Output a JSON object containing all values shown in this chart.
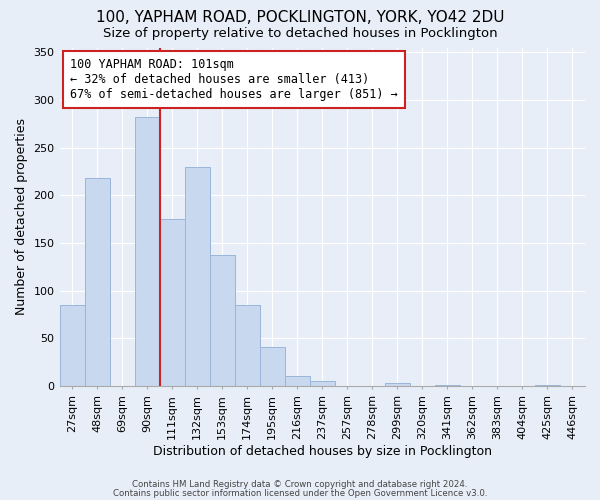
{
  "title": "100, YAPHAM ROAD, POCKLINGTON, YORK, YO42 2DU",
  "subtitle": "Size of property relative to detached houses in Pocklington",
  "xlabel": "Distribution of detached houses by size in Pocklington",
  "ylabel": "Number of detached properties",
  "bar_labels": [
    "27sqm",
    "48sqm",
    "69sqm",
    "90sqm",
    "111sqm",
    "132sqm",
    "153sqm",
    "174sqm",
    "195sqm",
    "216sqm",
    "237sqm",
    "257sqm",
    "278sqm",
    "299sqm",
    "320sqm",
    "341sqm",
    "362sqm",
    "383sqm",
    "404sqm",
    "425sqm",
    "446sqm"
  ],
  "bar_values": [
    85,
    218,
    0,
    282,
    175,
    230,
    138,
    85,
    41,
    11,
    5,
    0,
    0,
    3,
    0,
    1,
    0,
    0,
    0,
    1,
    0
  ],
  "bar_color": "#c8d8ee",
  "bar_edge_color": "#9ab5d8",
  "vline_x": 3.5,
  "vline_color": "#cc2222",
  "annotation_text": "100 YAPHAM ROAD: 101sqm\n← 32% of detached houses are smaller (413)\n67% of semi-detached houses are larger (851) →",
  "annotation_box_color": "white",
  "annotation_box_edge": "#cc2222",
  "ylim": [
    0,
    355
  ],
  "yticks": [
    0,
    50,
    100,
    150,
    200,
    250,
    300,
    350
  ],
  "footer1": "Contains HM Land Registry data © Crown copyright and database right 2024.",
  "footer2": "Contains public sector information licensed under the Open Government Licence v3.0.",
  "background_color": "#e8eef8",
  "grid_color": "#ffffff",
  "title_fontsize": 11,
  "subtitle_fontsize": 9.5,
  "axis_label_fontsize": 9,
  "tick_fontsize": 8
}
